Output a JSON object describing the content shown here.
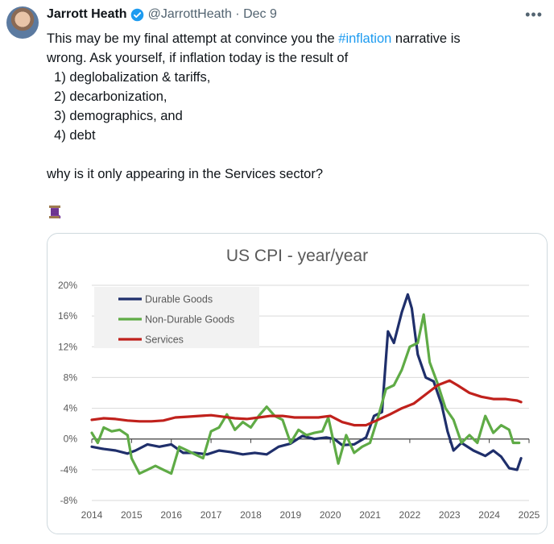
{
  "tweet": {
    "author_name": "Jarrott Heath",
    "handle_date": "@JarrottHeath · Dec 9",
    "text_before_hashtag": "This may be my final attempt at convince you the ",
    "hashtag": "#inflation",
    "text_after_hashtag": " narrative is",
    "lines": [
      "wrong. Ask yourself, if inflation today is the result of",
      "  1) deglobalization & tariffs,",
      "  2) decarbonization,",
      "  3) demographics, and",
      "  4) debt",
      "",
      "why is it only appearing in the Services sector?"
    ],
    "more_icon": "ellipsis-icon",
    "emoji": "thread-spool-icon"
  },
  "colors": {
    "durable": "#1f2f6b",
    "nondurable": "#5fab46",
    "services": "#c0211c",
    "axis_text": "#595959"
  },
  "chart_data": {
    "type": "line",
    "title": "US CPI - year/year",
    "xlabel": "",
    "ylabel": "",
    "xlim": [
      2014,
      2025
    ],
    "ylim": [
      -8,
      20
    ],
    "y_ticks": [
      "-8%",
      "-4%",
      "0%",
      "4%",
      "8%",
      "12%",
      "16%",
      "20%"
    ],
    "y_tick_values": [
      -8,
      -4,
      0,
      4,
      8,
      12,
      16,
      20
    ],
    "x_ticks": [
      "2014",
      "2015",
      "2016",
      "2017",
      "2018",
      "2019",
      "2020",
      "2021",
      "2022",
      "2023",
      "2024",
      "2025"
    ],
    "x_tick_values": [
      2014,
      2015,
      2016,
      2017,
      2018,
      2019,
      2020,
      2021,
      2022,
      2023,
      2024,
      2025
    ],
    "legend_position": "top-left",
    "series": [
      {
        "name": "Durable Goods",
        "x": [
          2014.0,
          2014.3,
          2014.6,
          2014.9,
          2015.1,
          2015.4,
          2015.7,
          2016.0,
          2016.3,
          2016.6,
          2016.9,
          2017.2,
          2017.5,
          2017.8,
          2018.1,
          2018.4,
          2018.7,
          2019.0,
          2019.3,
          2019.6,
          2019.9,
          2020.1,
          2020.3,
          2020.6,
          2020.9,
          2021.1,
          2021.3,
          2021.45,
          2021.6,
          2021.8,
          2021.95,
          2022.05,
          2022.2,
          2022.4,
          2022.6,
          2022.8,
          2022.95,
          2023.1,
          2023.3,
          2023.6,
          2023.9,
          2024.1,
          2024.3,
          2024.5,
          2024.7,
          2024.8
        ],
        "values": [
          -1.0,
          -1.3,
          -1.5,
          -1.9,
          -1.5,
          -0.7,
          -1.0,
          -0.7,
          -1.8,
          -1.8,
          -2.0,
          -1.5,
          -1.7,
          -2.0,
          -1.8,
          -2.0,
          -1.0,
          -0.6,
          0.4,
          0.0,
          0.2,
          0.0,
          -0.8,
          -0.7,
          0.2,
          3.0,
          3.5,
          14.0,
          12.5,
          16.5,
          18.8,
          17.0,
          11.0,
          8.0,
          7.5,
          4.5,
          1.0,
          -1.5,
          -0.5,
          -1.5,
          -2.2,
          -1.5,
          -2.3,
          -3.8,
          -4.0,
          -2.5
        ]
      },
      {
        "name": "Non-Durable Goods",
        "x": [
          2014.0,
          2014.15,
          2014.3,
          2014.5,
          2014.7,
          2014.9,
          2015.0,
          2015.2,
          2015.4,
          2015.6,
          2015.8,
          2016.0,
          2016.2,
          2016.4,
          2016.6,
          2016.8,
          2017.0,
          2017.2,
          2017.4,
          2017.6,
          2017.8,
          2018.0,
          2018.2,
          2018.4,
          2018.6,
          2018.8,
          2019.0,
          2019.2,
          2019.4,
          2019.6,
          2019.8,
          2019.95,
          2020.2,
          2020.4,
          2020.6,
          2020.8,
          2021.0,
          2021.2,
          2021.4,
          2021.6,
          2021.8,
          2022.0,
          2022.2,
          2022.35,
          2022.5,
          2022.7,
          2022.9,
          2023.1,
          2023.3,
          2023.5,
          2023.7,
          2023.9,
          2024.1,
          2024.3,
          2024.5,
          2024.6,
          2024.75
        ],
        "values": [
          0.8,
          -0.5,
          1.5,
          1.0,
          1.2,
          0.5,
          -2.5,
          -4.5,
          -4.0,
          -3.5,
          -4.0,
          -4.5,
          -1.0,
          -1.5,
          -2.0,
          -2.5,
          1.0,
          1.5,
          3.2,
          1.2,
          2.2,
          1.5,
          3.0,
          4.2,
          3.0,
          2.5,
          -0.5,
          1.2,
          0.5,
          0.8,
          1.0,
          2.8,
          -3.2,
          0.5,
          -1.8,
          -1.0,
          -0.5,
          2.8,
          6.5,
          7.0,
          9.0,
          12.0,
          12.5,
          16.2,
          10.0,
          7.2,
          4.0,
          2.5,
          -0.5,
          0.5,
          -0.5,
          3.0,
          0.8,
          1.8,
          1.2,
          -0.5,
          -0.5
        ]
      },
      {
        "name": "Services",
        "x": [
          2014.0,
          2014.3,
          2014.6,
          2014.9,
          2015.2,
          2015.5,
          2015.8,
          2016.1,
          2016.4,
          2016.7,
          2017.0,
          2017.3,
          2017.6,
          2017.9,
          2018.2,
          2018.5,
          2018.8,
          2019.1,
          2019.4,
          2019.7,
          2020.0,
          2020.3,
          2020.6,
          2020.9,
          2021.2,
          2021.5,
          2021.8,
          2022.1,
          2022.4,
          2022.7,
          2023.0,
          2023.2,
          2023.5,
          2023.8,
          2024.1,
          2024.4,
          2024.7,
          2024.8
        ],
        "values": [
          2.5,
          2.7,
          2.6,
          2.4,
          2.3,
          2.3,
          2.4,
          2.8,
          2.9,
          3.0,
          3.1,
          2.9,
          2.7,
          2.6,
          2.8,
          3.0,
          3.0,
          2.8,
          2.8,
          2.8,
          3.0,
          2.2,
          1.8,
          1.8,
          2.5,
          3.2,
          4.0,
          4.6,
          5.8,
          7.0,
          7.6,
          7.0,
          6.0,
          5.5,
          5.2,
          5.2,
          5.0,
          4.8
        ]
      }
    ]
  }
}
